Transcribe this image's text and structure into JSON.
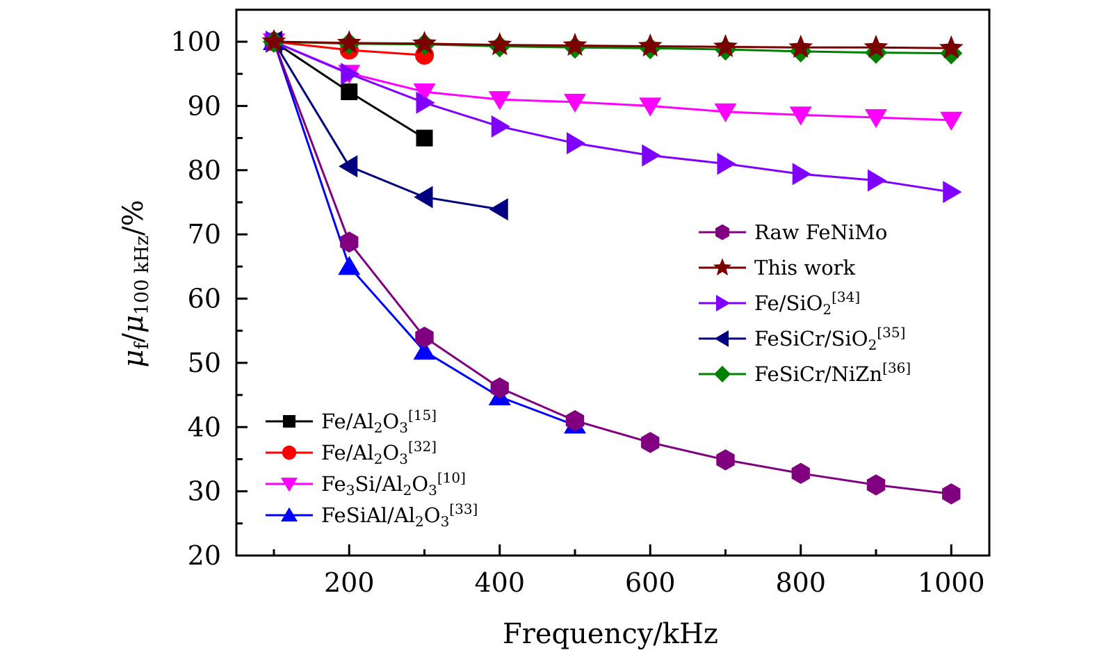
{
  "chart_data": {
    "type": "line",
    "title": "",
    "xlabel": "Frequency/kHz",
    "ylabel": {
      "parts": [
        {
          "text": "μ",
          "style": "italic"
        },
        {
          "text": "f",
          "style": "sub"
        },
        {
          "text": "/",
          "style": "normal"
        },
        {
          "text": "μ",
          "style": "italic"
        },
        {
          "text": "100 kHz",
          "style": "sub"
        },
        {
          "text": "/%",
          "style": "normal"
        }
      ],
      "plain": "μf/μ100 kHz/%"
    },
    "xlim": [
      48,
      1050
    ],
    "ylim": [
      20,
      105
    ],
    "xticks": [
      200,
      400,
      600,
      800,
      1000
    ],
    "xminor_ticks": [
      100,
      300,
      500,
      700,
      900
    ],
    "yticks": [
      20,
      30,
      40,
      50,
      60,
      70,
      80,
      90,
      100
    ],
    "yminor_ticks": [
      25,
      35,
      45,
      55,
      65,
      75,
      85,
      95
    ],
    "grid": false,
    "legends": [
      {
        "placement": "center-right",
        "entries": [
          "Raw FeNiMo",
          "This work",
          "Fe/SiO2[34]",
          "FeSiCr/SiO2[35]",
          "FeSiCr/NiZn[36]"
        ]
      },
      {
        "placement": "bottom-left",
        "entries": [
          "Fe/Al2O3[15]",
          "Fe/Al2O3[32]",
          "Fe3Si/Al2O3[10]",
          "FeSiAl/Al2O3[33]"
        ]
      }
    ],
    "series": [
      {
        "name": "Fe/Al2O3[15]",
        "label_parts": [
          {
            "t": "Fe/Al"
          },
          {
            "t": "2",
            "s": "sub"
          },
          {
            "t": "O"
          },
          {
            "t": "3",
            "s": "sub"
          },
          {
            "t": "[15]",
            "s": "sup"
          }
        ],
        "color": "#000000",
        "marker": "square",
        "legend": 1,
        "x": [
          100,
          200,
          300
        ],
        "y": [
          100,
          92.2,
          85.0
        ]
      },
      {
        "name": "Fe/Al2O3[32]",
        "label_parts": [
          {
            "t": "Fe/Al"
          },
          {
            "t": "2",
            "s": "sub"
          },
          {
            "t": "O"
          },
          {
            "t": "3",
            "s": "sub"
          },
          {
            "t": "[32]",
            "s": "sup"
          }
        ],
        "color": "#ff0000",
        "marker": "circle",
        "legend": 1,
        "x": [
          100,
          200,
          300
        ],
        "y": [
          100,
          98.7,
          97.9
        ]
      },
      {
        "name": "Fe3Si/Al2O3[10]",
        "label_parts": [
          {
            "t": "Fe"
          },
          {
            "t": "3",
            "s": "sub"
          },
          {
            "t": "Si/Al"
          },
          {
            "t": "2",
            "s": "sub"
          },
          {
            "t": "O"
          },
          {
            "t": "3",
            "s": "sub"
          },
          {
            "t": "[10]",
            "s": "sup"
          }
        ],
        "color": "#ff00ff",
        "marker": "triangle-down",
        "legend": 1,
        "x": [
          100,
          200,
          300,
          400,
          500,
          600,
          700,
          800,
          900,
          1000
        ],
        "y": [
          100,
          95.1,
          92.2,
          91.0,
          90.6,
          90.0,
          89.1,
          88.6,
          88.2,
          87.8
        ]
      },
      {
        "name": "FeSiAl/Al2O3[33]",
        "label_parts": [
          {
            "t": "FeSiAl/Al"
          },
          {
            "t": "2",
            "s": "sub"
          },
          {
            "t": "O"
          },
          {
            "t": "3",
            "s": "sub"
          },
          {
            "t": "[33]",
            "s": "sup"
          }
        ],
        "color": "#0000ff",
        "marker": "triangle-up",
        "legend": 1,
        "x": [
          100,
          200,
          300,
          400,
          500
        ],
        "y": [
          100,
          65.0,
          51.8,
          44.7,
          40.3
        ]
      },
      {
        "name": "Raw FeNiMo",
        "label_parts": [
          {
            "t": "Raw FeNiMo"
          }
        ],
        "color": "#800080",
        "marker": "hexagon",
        "legend": 0,
        "x": [
          100,
          200,
          300,
          400,
          500,
          600,
          700,
          800,
          900,
          1000
        ],
        "y": [
          100,
          68.8,
          54.0,
          46.1,
          41.0,
          37.6,
          34.9,
          32.8,
          31.0,
          29.6
        ]
      },
      {
        "name": "FeSiCr/SiO2[35]",
        "label_parts": [
          {
            "t": "FeSiCr/SiO"
          },
          {
            "t": "2",
            "s": "sub"
          },
          {
            "t": "[35]",
            "s": "sup"
          }
        ],
        "color": "#000080",
        "marker": "triangle-left",
        "legend": 0,
        "x": [
          100,
          200,
          300,
          400
        ],
        "y": [
          100,
          80.6,
          75.8,
          73.9
        ]
      },
      {
        "name": "Fe/SiO2[34]",
        "label_parts": [
          {
            "t": "Fe/SiO"
          },
          {
            "t": "2",
            "s": "sub"
          },
          {
            "t": "[34]",
            "s": "sup"
          }
        ],
        "color": "#8000ff",
        "marker": "triangle-right",
        "legend": 0,
        "x": [
          100,
          200,
          300,
          400,
          500,
          600,
          700,
          800,
          900,
          1000
        ],
        "y": [
          100,
          95.0,
          90.5,
          86.8,
          84.2,
          82.3,
          81.0,
          79.4,
          78.4,
          76.6
        ]
      },
      {
        "name": "FeSiCr/NiZn[36]",
        "label_parts": [
          {
            "t": "FeSiCr/NiZn"
          },
          {
            "t": "[36]",
            "s": "sup"
          }
        ],
        "color": "#008000",
        "marker": "diamond",
        "legend": 0,
        "x": [
          100,
          200,
          300,
          400,
          500,
          600,
          700,
          800,
          900,
          1000
        ],
        "y": [
          100,
          99.7,
          99.6,
          99.3,
          99.1,
          99.0,
          98.8,
          98.5,
          98.3,
          98.2
        ]
      },
      {
        "name": "This work",
        "label_parts": [
          {
            "t": "This work"
          }
        ],
        "color": "#7a0000",
        "marker": "star",
        "legend": 0,
        "x": [
          100,
          200,
          300,
          400,
          500,
          600,
          700,
          800,
          900,
          1000
        ],
        "y": [
          100,
          99.8,
          99.7,
          99.5,
          99.4,
          99.3,
          99.2,
          99.1,
          99.1,
          99.0
        ]
      }
    ]
  }
}
